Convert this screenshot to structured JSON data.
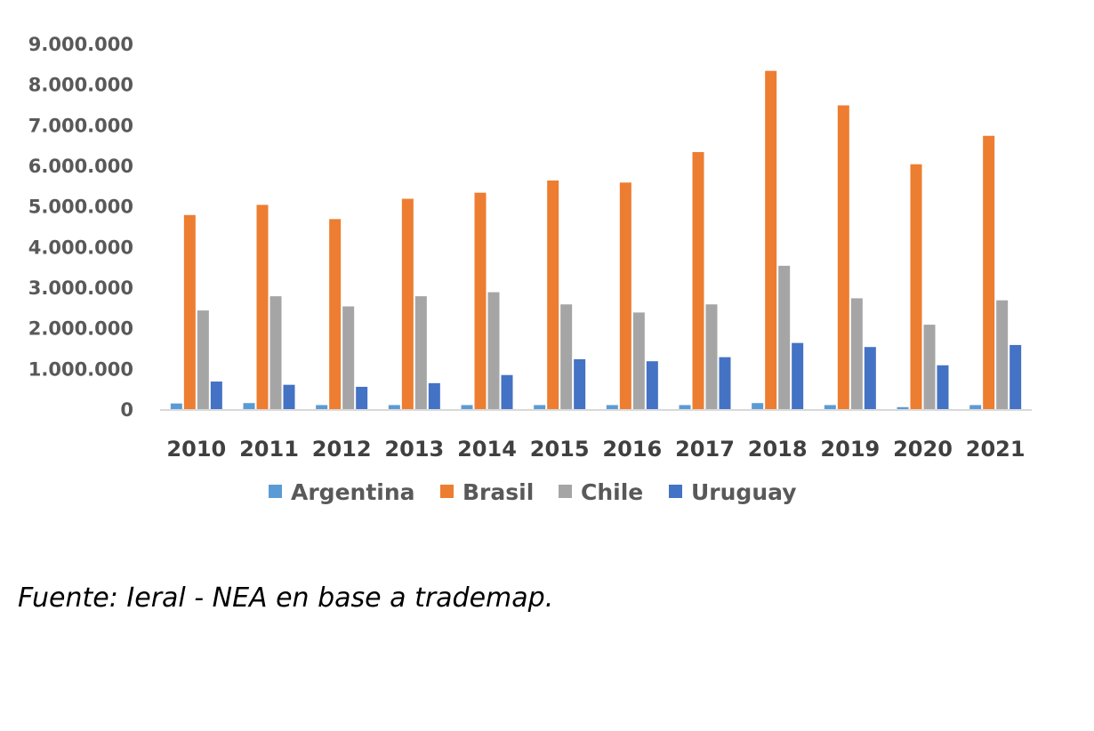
{
  "chart_data": {
    "type": "bar",
    "categories": [
      "2010",
      "2011",
      "2012",
      "2013",
      "2014",
      "2015",
      "2016",
      "2017",
      "2018",
      "2019",
      "2020",
      "2021"
    ],
    "series": [
      {
        "name": "Argentina",
        "color": "#5B9BD5",
        "values": [
          160000,
          170000,
          120000,
          120000,
          120000,
          120000,
          120000,
          120000,
          170000,
          120000,
          70000,
          120000
        ]
      },
      {
        "name": "Brasil",
        "color": "#ED7D31",
        "values": [
          4800000,
          5050000,
          4700000,
          5200000,
          5350000,
          5650000,
          5600000,
          6350000,
          8350000,
          7500000,
          6050000,
          6750000
        ]
      },
      {
        "name": "Chile",
        "color": "#A5A5A5",
        "values": [
          2450000,
          2800000,
          2550000,
          2800000,
          2900000,
          2600000,
          2400000,
          2600000,
          3550000,
          2750000,
          2100000,
          2700000
        ]
      },
      {
        "name": "Uruguay",
        "color": "#4472C4",
        "values": [
          700000,
          620000,
          570000,
          660000,
          860000,
          1250000,
          1200000,
          1300000,
          1650000,
          1550000,
          1100000,
          1600000
        ]
      }
    ],
    "y_ticks": [
      "0",
      "1.000.000",
      "2.000.000",
      "3.000.000",
      "4.000.000",
      "5.000.000",
      "6.000.000",
      "7.000.000",
      "8.000.000",
      "9.000.000"
    ],
    "ylim": [
      0,
      9000000
    ],
    "grid": false,
    "legend_position": "bottom",
    "title": "",
    "xlabel": "",
    "ylabel": ""
  },
  "source_note": "Fuente: Ieral - NEA en base a trademap."
}
